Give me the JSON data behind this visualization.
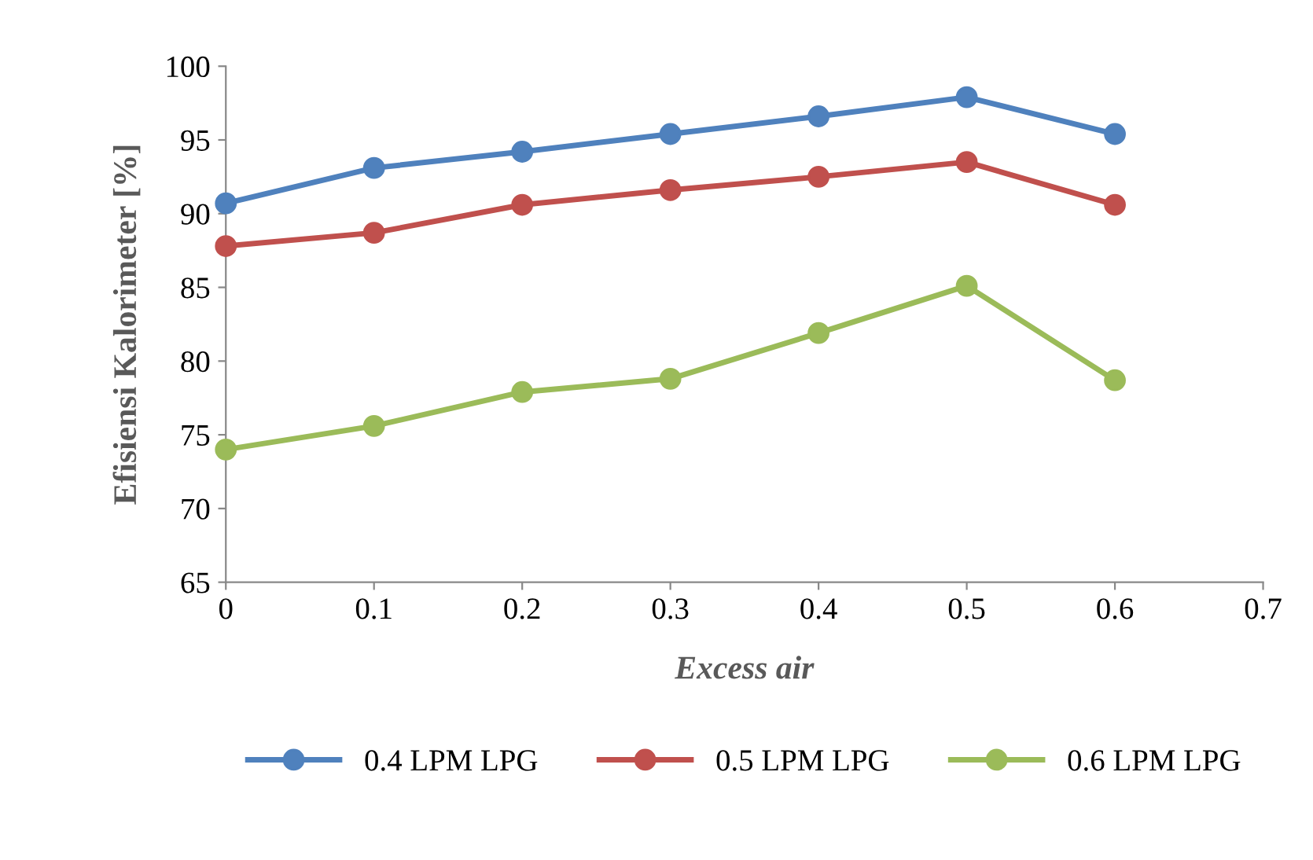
{
  "chart_data": {
    "type": "line",
    "xlabel": "Excess air",
    "ylabel": "Efisiensi Kalorimeter [%]",
    "x": [
      0,
      0.1,
      0.2,
      0.3,
      0.4,
      0.5,
      0.6
    ],
    "series": [
      {
        "name": "0.4 LPM LPG",
        "color": "#4f81bd",
        "values": [
          90.7,
          93.1,
          94.2,
          95.4,
          96.6,
          97.9,
          95.4
        ]
      },
      {
        "name": "0.5 LPM LPG",
        "color": "#c0504d",
        "values": [
          87.8,
          88.7,
          90.6,
          91.6,
          92.5,
          93.5,
          90.6
        ]
      },
      {
        "name": "0.6 LPM LPG",
        "color": "#9bbb59",
        "values": [
          74.0,
          75.6,
          77.9,
          78.8,
          81.9,
          85.1,
          78.7
        ]
      }
    ],
    "xlim": [
      0,
      0.7
    ],
    "xticks": [
      0,
      0.1,
      0.2,
      0.3,
      0.4,
      0.5,
      0.6,
      0.7
    ],
    "ylim": [
      65,
      100
    ],
    "yticks": [
      65,
      70,
      75,
      80,
      85,
      90,
      95,
      100
    ],
    "grid": false,
    "legend": "bottom",
    "marker": "circle",
    "line_style": "solid"
  }
}
